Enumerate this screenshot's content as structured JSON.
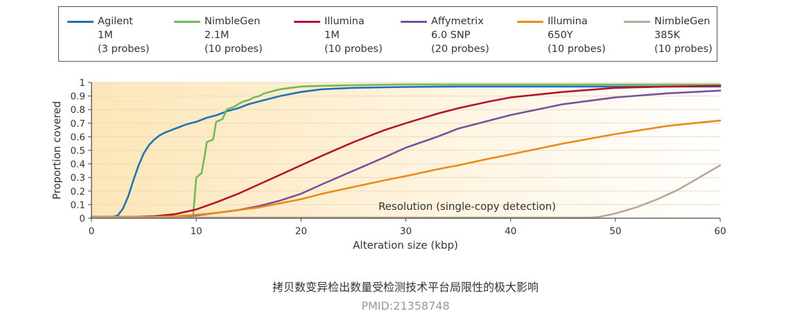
{
  "legend": {
    "items": [
      {
        "lines": [
          "Agilent",
          "1M",
          "(3 probes)"
        ],
        "color": "#1f72b5"
      },
      {
        "lines": [
          "NimbleGen",
          "2.1M",
          "(10 probes)"
        ],
        "color": "#72b85a"
      },
      {
        "lines": [
          "Illumina",
          "1M",
          "(10 probes)"
        ],
        "color": "#b5122c"
      },
      {
        "lines": [
          "Affymetrix",
          "6.0 SNP",
          "(20 probes)"
        ],
        "color": "#7a4f9c"
      },
      {
        "lines": [
          "Illumina",
          "650Y",
          "(10 probes)"
        ],
        "color": "#ec8a19"
      },
      {
        "lines": [
          "NimbleGen",
          "385K",
          "(10 probes)"
        ],
        "color": "#b8a895"
      }
    ]
  },
  "chart_data": {
    "type": "line",
    "xlabel": "Alteration size (kbp)",
    "ylabel": "Proportion covered",
    "xlim": [
      0,
      60
    ],
    "ylim": [
      0,
      1
    ],
    "xticks": [
      "0",
      "10",
      "20",
      "30",
      "40",
      "50",
      "60"
    ],
    "yticks": [
      "0",
      "0.1",
      "0.2",
      "0.3",
      "0.4",
      "0.5",
      "0.6",
      "0.7",
      "0.8",
      "0.9",
      "1"
    ],
    "annotation": "Resolution (single-copy detection)",
    "background_gradient": [
      "#fde6b8",
      "#ffffff"
    ],
    "series": [
      {
        "name": "Agilent 1M (3 probes)",
        "color": "#1f72b5",
        "x": [
          0,
          2,
          2.5,
          3,
          3.5,
          4,
          4.5,
          5,
          5.5,
          6,
          6.5,
          7,
          8,
          9,
          10,
          11,
          12,
          13,
          14,
          15,
          16,
          18,
          20,
          22,
          25,
          30,
          35,
          40,
          50,
          60
        ],
        "y": [
          0.01,
          0.01,
          0.02,
          0.07,
          0.16,
          0.28,
          0.39,
          0.48,
          0.54,
          0.58,
          0.61,
          0.63,
          0.66,
          0.69,
          0.71,
          0.74,
          0.76,
          0.79,
          0.81,
          0.84,
          0.86,
          0.9,
          0.93,
          0.95,
          0.96,
          0.967,
          0.97,
          0.97,
          0.97,
          0.97
        ]
      },
      {
        "name": "NimbleGen 2.1M (10 probes)",
        "color": "#72b85a",
        "x": [
          0,
          9.5,
          9.7,
          10,
          10.3,
          10.5,
          10.8,
          11,
          11.3,
          11.6,
          11.9,
          12.2,
          12.5,
          12.9,
          13.2,
          13.6,
          14,
          14.5,
          15,
          15.5,
          16,
          16.5,
          17,
          17.5,
          18,
          19,
          20,
          22,
          25,
          30,
          40,
          60
        ],
        "y": [
          0.01,
          0.01,
          0.02,
          0.3,
          0.32,
          0.33,
          0.46,
          0.56,
          0.57,
          0.58,
          0.71,
          0.72,
          0.73,
          0.8,
          0.81,
          0.82,
          0.84,
          0.86,
          0.87,
          0.89,
          0.9,
          0.92,
          0.93,
          0.94,
          0.95,
          0.96,
          0.97,
          0.975,
          0.98,
          0.985,
          0.985,
          0.985
        ]
      },
      {
        "name": "Illumina 1M (10 probes)",
        "color": "#b5122c",
        "x": [
          0,
          4,
          6,
          8,
          10,
          12,
          14,
          16,
          18,
          20,
          22,
          25,
          28,
          30,
          33,
          35,
          38,
          40,
          45,
          50,
          55,
          60
        ],
        "y": [
          0.01,
          0.01,
          0.015,
          0.03,
          0.065,
          0.12,
          0.18,
          0.25,
          0.32,
          0.39,
          0.46,
          0.56,
          0.65,
          0.7,
          0.77,
          0.81,
          0.86,
          0.89,
          0.93,
          0.96,
          0.97,
          0.975
        ]
      },
      {
        "name": "Affymetrix 6.0 SNP (20 probes)",
        "color": "#7a4f9c",
        "x": [
          0,
          8,
          10,
          12,
          14,
          16,
          18,
          20,
          22,
          25,
          28,
          30,
          33,
          35,
          38,
          40,
          45,
          50,
          55,
          60
        ],
        "y": [
          0.005,
          0.01,
          0.02,
          0.04,
          0.06,
          0.09,
          0.13,
          0.18,
          0.25,
          0.35,
          0.45,
          0.52,
          0.6,
          0.66,
          0.72,
          0.76,
          0.84,
          0.89,
          0.92,
          0.94
        ]
      },
      {
        "name": "Illumina 650Y (10 probes)",
        "color": "#ec8a19",
        "x": [
          0,
          6,
          8,
          10,
          12,
          14,
          16,
          18,
          20,
          22,
          25,
          28,
          30,
          33,
          35,
          38,
          40,
          45,
          50,
          55,
          60
        ],
        "y": [
          0.01,
          0.01,
          0.015,
          0.025,
          0.04,
          0.06,
          0.08,
          0.11,
          0.14,
          0.18,
          0.23,
          0.28,
          0.31,
          0.36,
          0.39,
          0.44,
          0.47,
          0.55,
          0.62,
          0.68,
          0.72
        ]
      },
      {
        "name": "NimbleGen 385K (10 probes)",
        "color": "#b8a895",
        "x": [
          0,
          45,
          47.5,
          48.5,
          50,
          52,
          54,
          56,
          58,
          60
        ],
        "y": [
          0.005,
          0.005,
          0.005,
          0.01,
          0.035,
          0.08,
          0.14,
          0.21,
          0.3,
          0.39
        ]
      }
    ]
  },
  "caption": "拷贝数变异检出数量受检测技术平台局限性的极大影响",
  "pmid": "PMID:21358748"
}
